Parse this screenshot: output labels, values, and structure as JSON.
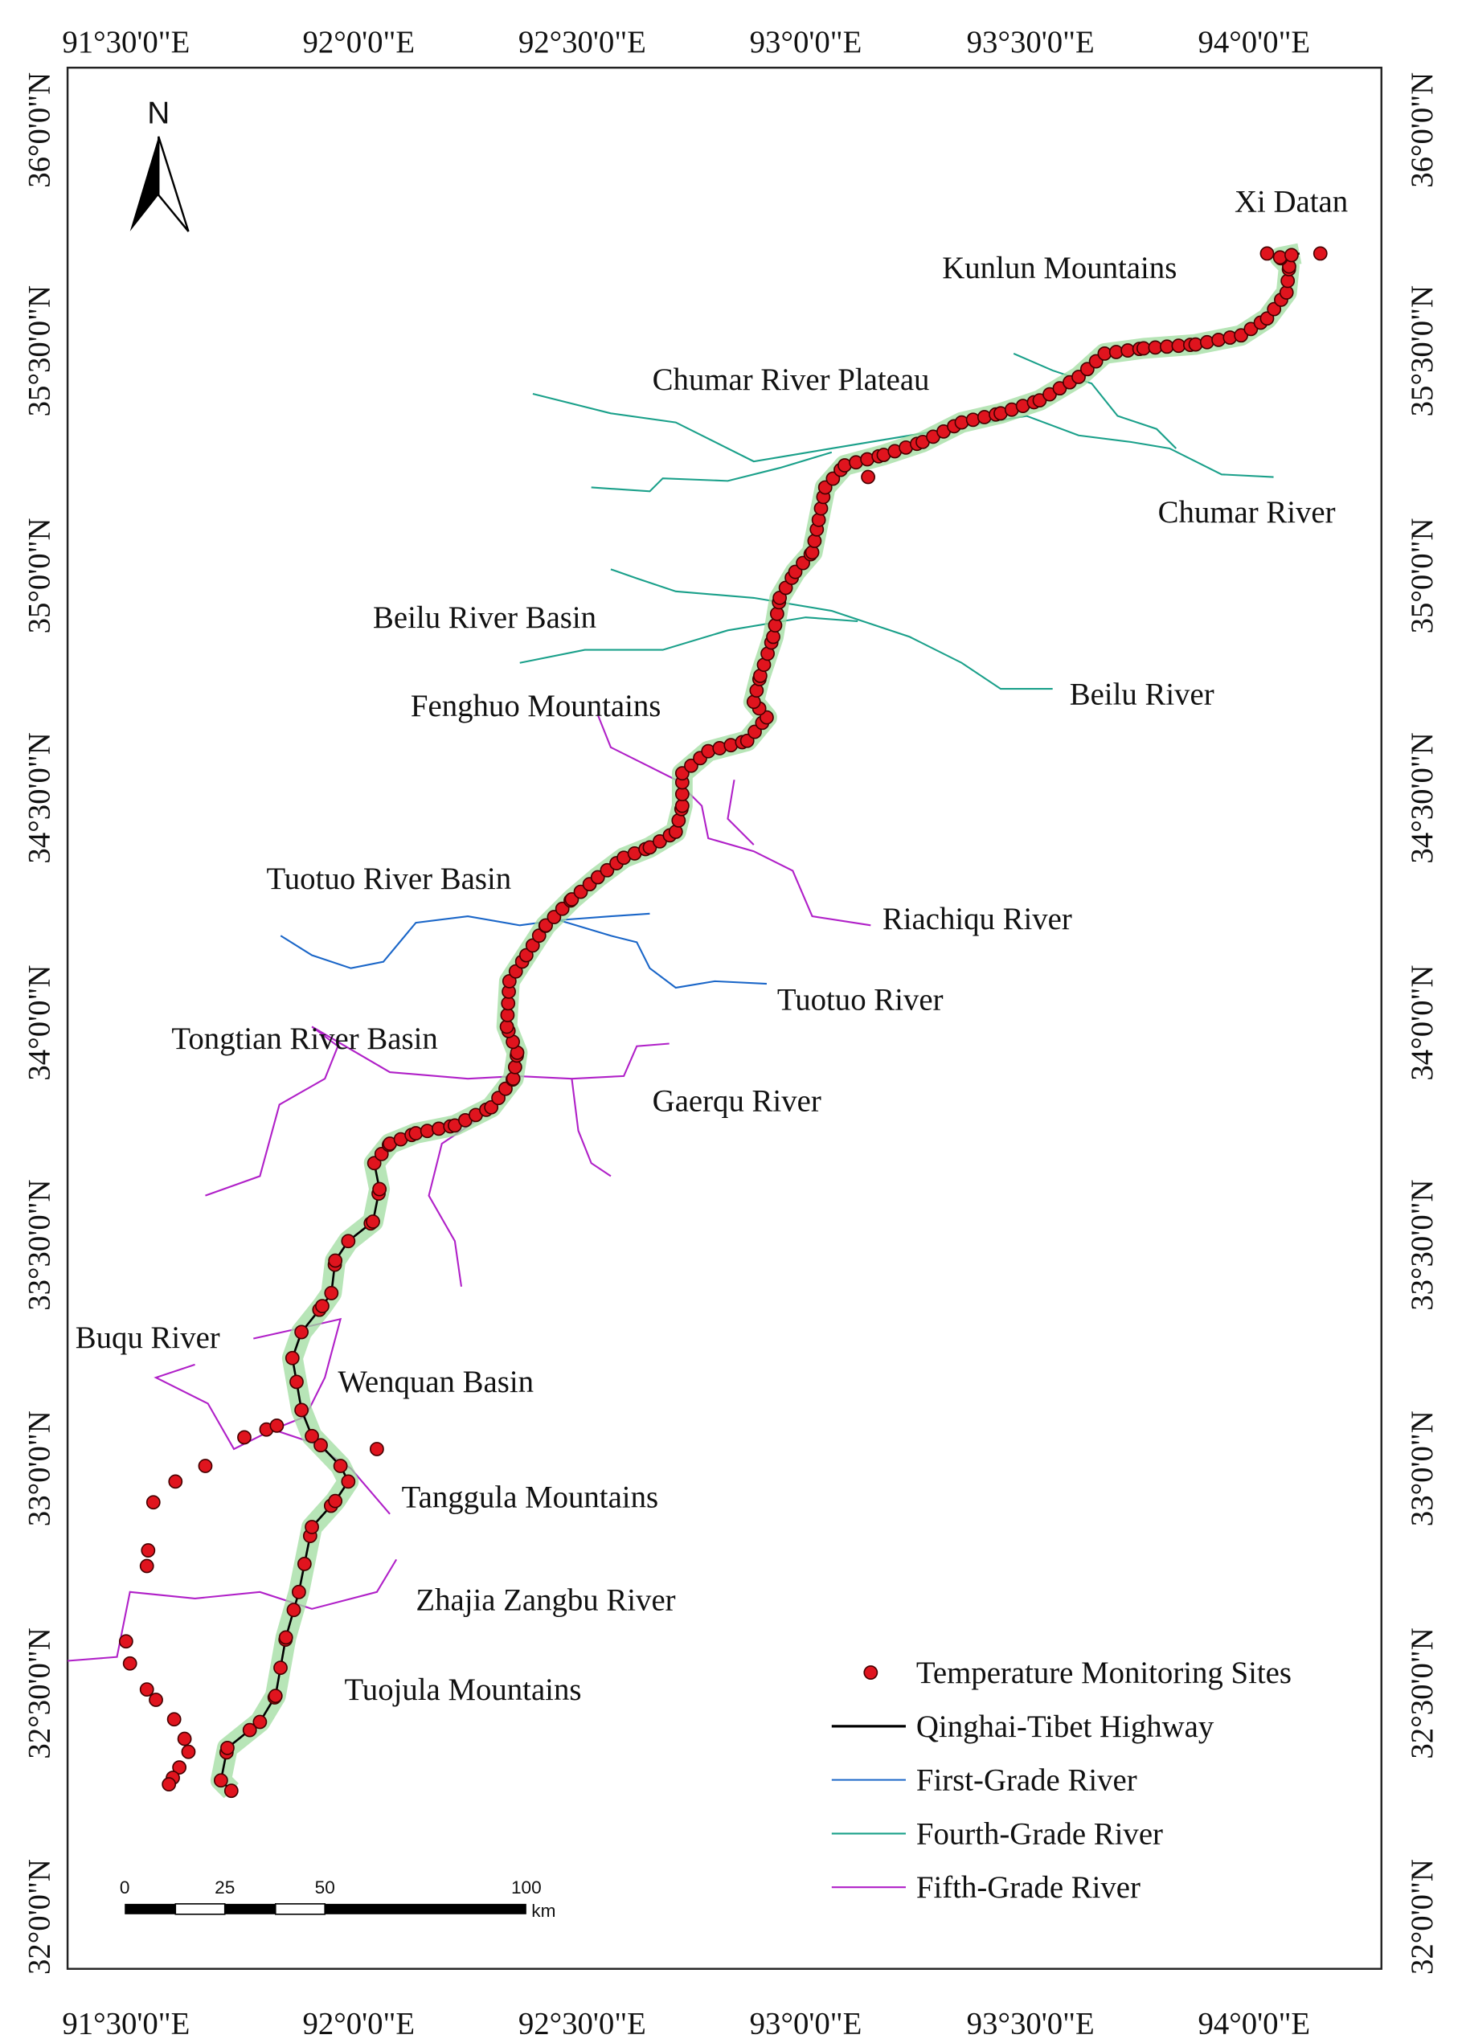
{
  "map": {
    "north": "N",
    "lon_labels": [
      "91°30'0\"E",
      "92°0'0\"E",
      "92°30'0\"E",
      "93°0'0\"E",
      "93°30'0\"E",
      "94°0'0\"E"
    ],
    "lat_labels": [
      "36°0'0\"N",
      "35°30'0\"N",
      "35°0'0\"N",
      "34°30'0\"N",
      "34°0'0\"N",
      "33°30'0\"N",
      "33°0'0\"N",
      "32°30'0\"N",
      "32°0'0\"N"
    ],
    "places": [
      "Xi Datan",
      "Kunlun Mountains",
      "Chumar River Plateau",
      "Chumar River",
      "Beilu River Basin",
      "Beilu River",
      "Fenghuo Mountains",
      "Tuotuo River Basin",
      "Riachiqu River",
      "Tuotuo River",
      "Tongtian River Basin",
      "Gaerqu River",
      "Buqu River",
      "Wenquan Basin",
      "Tanggula Mountains",
      "Zhajia Zangbu River",
      "Tuojula Mountains"
    ],
    "legend": [
      "Temperature Monitoring Sites",
      "Qinghai-Tibet Highway",
      "First-Grade River",
      "Fourth-Grade River",
      "Fifth-Grade River"
    ],
    "scale_bar": {
      "labels": [
        "0",
        "25",
        "50",
        "100"
      ],
      "unit": "km"
    }
  }
}
